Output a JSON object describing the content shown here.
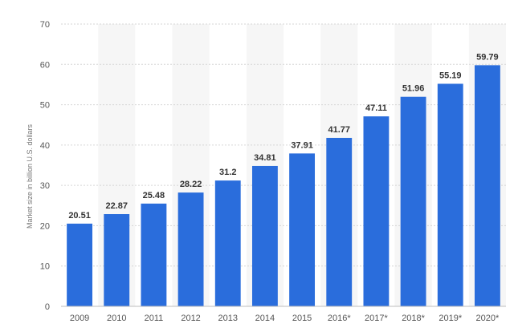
{
  "chart_data": {
    "type": "bar",
    "categories": [
      "2009",
      "2010",
      "2011",
      "2012",
      "2013",
      "2014",
      "2015",
      "2016*",
      "2017*",
      "2018*",
      "2019*",
      "2020*"
    ],
    "values": [
      20.51,
      22.87,
      25.48,
      28.22,
      31.2,
      34.81,
      37.91,
      41.77,
      47.11,
      51.96,
      55.19,
      59.79
    ],
    "value_labels": [
      "20.51",
      "22.87",
      "25.48",
      "28.22",
      "31.2",
      "34.81",
      "37.91",
      "41.77",
      "47.11",
      "51.96",
      "55.19",
      "59.79"
    ],
    "title": "",
    "xlabel": "",
    "ylabel": "Market size in billion U.S. dollars",
    "ylim": [
      0,
      70
    ],
    "yticks": [
      0,
      10,
      20,
      30,
      40,
      50,
      60,
      70
    ],
    "grid": true,
    "legend": "none",
    "bar_color": "#2a6ddc",
    "band_color": "#f6f6f6"
  }
}
